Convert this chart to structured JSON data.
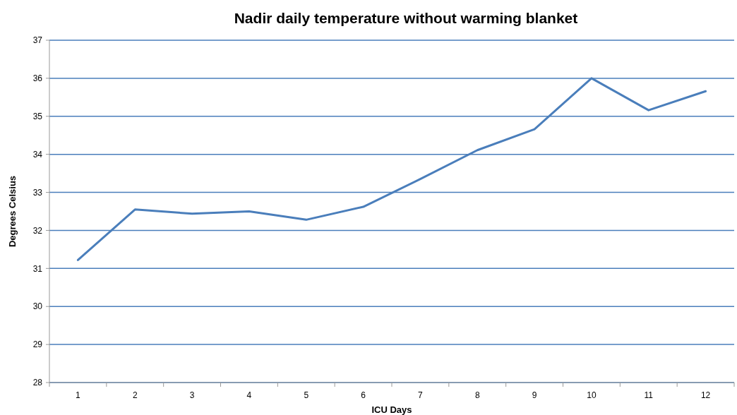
{
  "chart_data": {
    "type": "line",
    "title": "Nadir daily temperature without warming blanket",
    "xlabel": "ICU Days",
    "ylabel": "Degrees Celsius",
    "categories": [
      "1",
      "2",
      "3",
      "4",
      "5",
      "6",
      "7",
      "8",
      "9",
      "10",
      "11",
      "12"
    ],
    "series": [
      {
        "color": "#4a7ebb",
        "values": [
          31.22,
          32.55,
          32.44,
          32.5,
          32.28,
          32.62,
          33.35,
          34.11,
          34.66,
          36.0,
          35.16,
          35.66
        ]
      }
    ],
    "ylim": [
      28,
      37
    ],
    "yticks": [
      28,
      29,
      30,
      31,
      32,
      33,
      34,
      35,
      36,
      37
    ],
    "grid": "y",
    "marker": "none",
    "line_style": "solid"
  }
}
